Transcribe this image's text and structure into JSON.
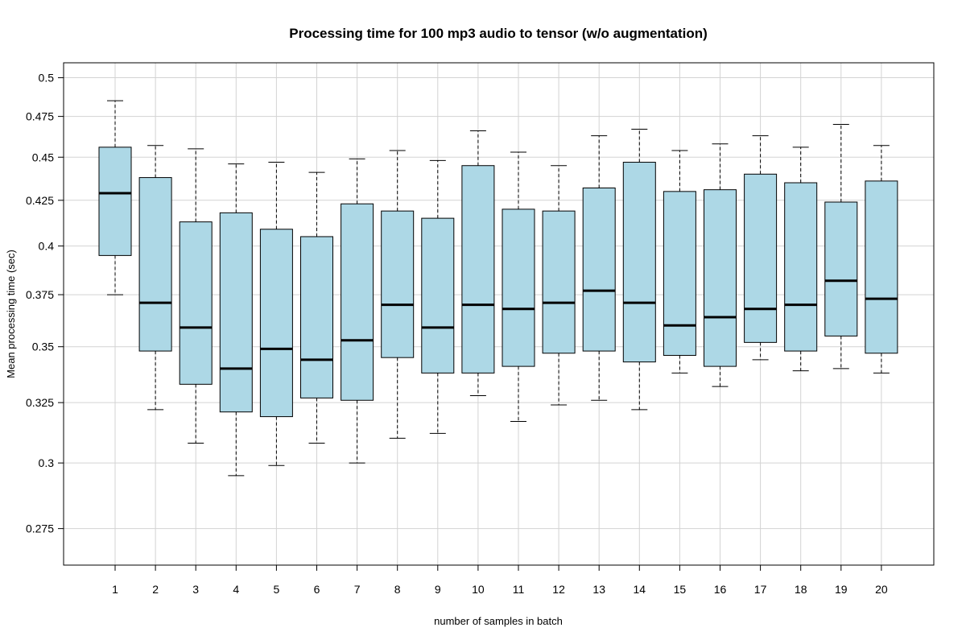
{
  "chart_data": {
    "type": "box",
    "title": "Processing time for 100 mp3 audio to tensor (w/o augmentation)",
    "xlabel": "number of samples in batch",
    "ylabel": "Mean processing time (sec)",
    "y_scale": "log",
    "ylim": [
      0.262,
      0.51
    ],
    "grid": true,
    "y_ticks": [
      0.275,
      0.3,
      0.325,
      0.35,
      0.375,
      0.4,
      0.425,
      0.45,
      0.475,
      0.5
    ],
    "y_tick_labels": [
      "0.275",
      "0.3",
      "0.325",
      "0.35",
      "0.375",
      "0.4",
      "0.425",
      "0.45",
      "0.475",
      "0.5"
    ],
    "categories": [
      "1",
      "2",
      "3",
      "4",
      "5",
      "6",
      "7",
      "8",
      "9",
      "10",
      "11",
      "12",
      "13",
      "14",
      "15",
      "16",
      "17",
      "18",
      "19",
      "20"
    ],
    "box_fill": "#add8e6",
    "boxes": [
      {
        "whisker_low": 0.375,
        "q1": 0.395,
        "median": 0.429,
        "q3": 0.456,
        "whisker_high": 0.485
      },
      {
        "whisker_low": 0.322,
        "q1": 0.348,
        "median": 0.371,
        "q3": 0.438,
        "whisker_high": 0.457
      },
      {
        "whisker_low": 0.308,
        "q1": 0.333,
        "median": 0.359,
        "q3": 0.413,
        "whisker_high": 0.455
      },
      {
        "whisker_low": 0.295,
        "q1": 0.321,
        "median": 0.34,
        "q3": 0.418,
        "whisker_high": 0.446
      },
      {
        "whisker_low": 0.299,
        "q1": 0.319,
        "median": 0.349,
        "q3": 0.409,
        "whisker_high": 0.447
      },
      {
        "whisker_low": 0.308,
        "q1": 0.327,
        "median": 0.344,
        "q3": 0.405,
        "whisker_high": 0.441
      },
      {
        "whisker_low": 0.3,
        "q1": 0.326,
        "median": 0.353,
        "q3": 0.423,
        "whisker_high": 0.449
      },
      {
        "whisker_low": 0.31,
        "q1": 0.345,
        "median": 0.37,
        "q3": 0.419,
        "whisker_high": 0.454
      },
      {
        "whisker_low": 0.312,
        "q1": 0.338,
        "median": 0.359,
        "q3": 0.415,
        "whisker_high": 0.448
      },
      {
        "whisker_low": 0.328,
        "q1": 0.338,
        "median": 0.37,
        "q3": 0.445,
        "whisker_high": 0.466
      },
      {
        "whisker_low": 0.317,
        "q1": 0.341,
        "median": 0.368,
        "q3": 0.42,
        "whisker_high": 0.453
      },
      {
        "whisker_low": 0.324,
        "q1": 0.347,
        "median": 0.371,
        "q3": 0.419,
        "whisker_high": 0.445
      },
      {
        "whisker_low": 0.326,
        "q1": 0.348,
        "median": 0.377,
        "q3": 0.432,
        "whisker_high": 0.463
      },
      {
        "whisker_low": 0.322,
        "q1": 0.343,
        "median": 0.371,
        "q3": 0.447,
        "whisker_high": 0.467
      },
      {
        "whisker_low": 0.338,
        "q1": 0.346,
        "median": 0.36,
        "q3": 0.43,
        "whisker_high": 0.454
      },
      {
        "whisker_low": 0.332,
        "q1": 0.341,
        "median": 0.364,
        "q3": 0.431,
        "whisker_high": 0.458
      },
      {
        "whisker_low": 0.344,
        "q1": 0.352,
        "median": 0.368,
        "q3": 0.44,
        "whisker_high": 0.463
      },
      {
        "whisker_low": 0.339,
        "q1": 0.348,
        "median": 0.37,
        "q3": 0.435,
        "whisker_high": 0.456
      },
      {
        "whisker_low": 0.34,
        "q1": 0.355,
        "median": 0.382,
        "q3": 0.424,
        "whisker_high": 0.47
      },
      {
        "whisker_low": 0.338,
        "q1": 0.347,
        "median": 0.373,
        "q3": 0.436,
        "whisker_high": 0.457
      }
    ]
  }
}
